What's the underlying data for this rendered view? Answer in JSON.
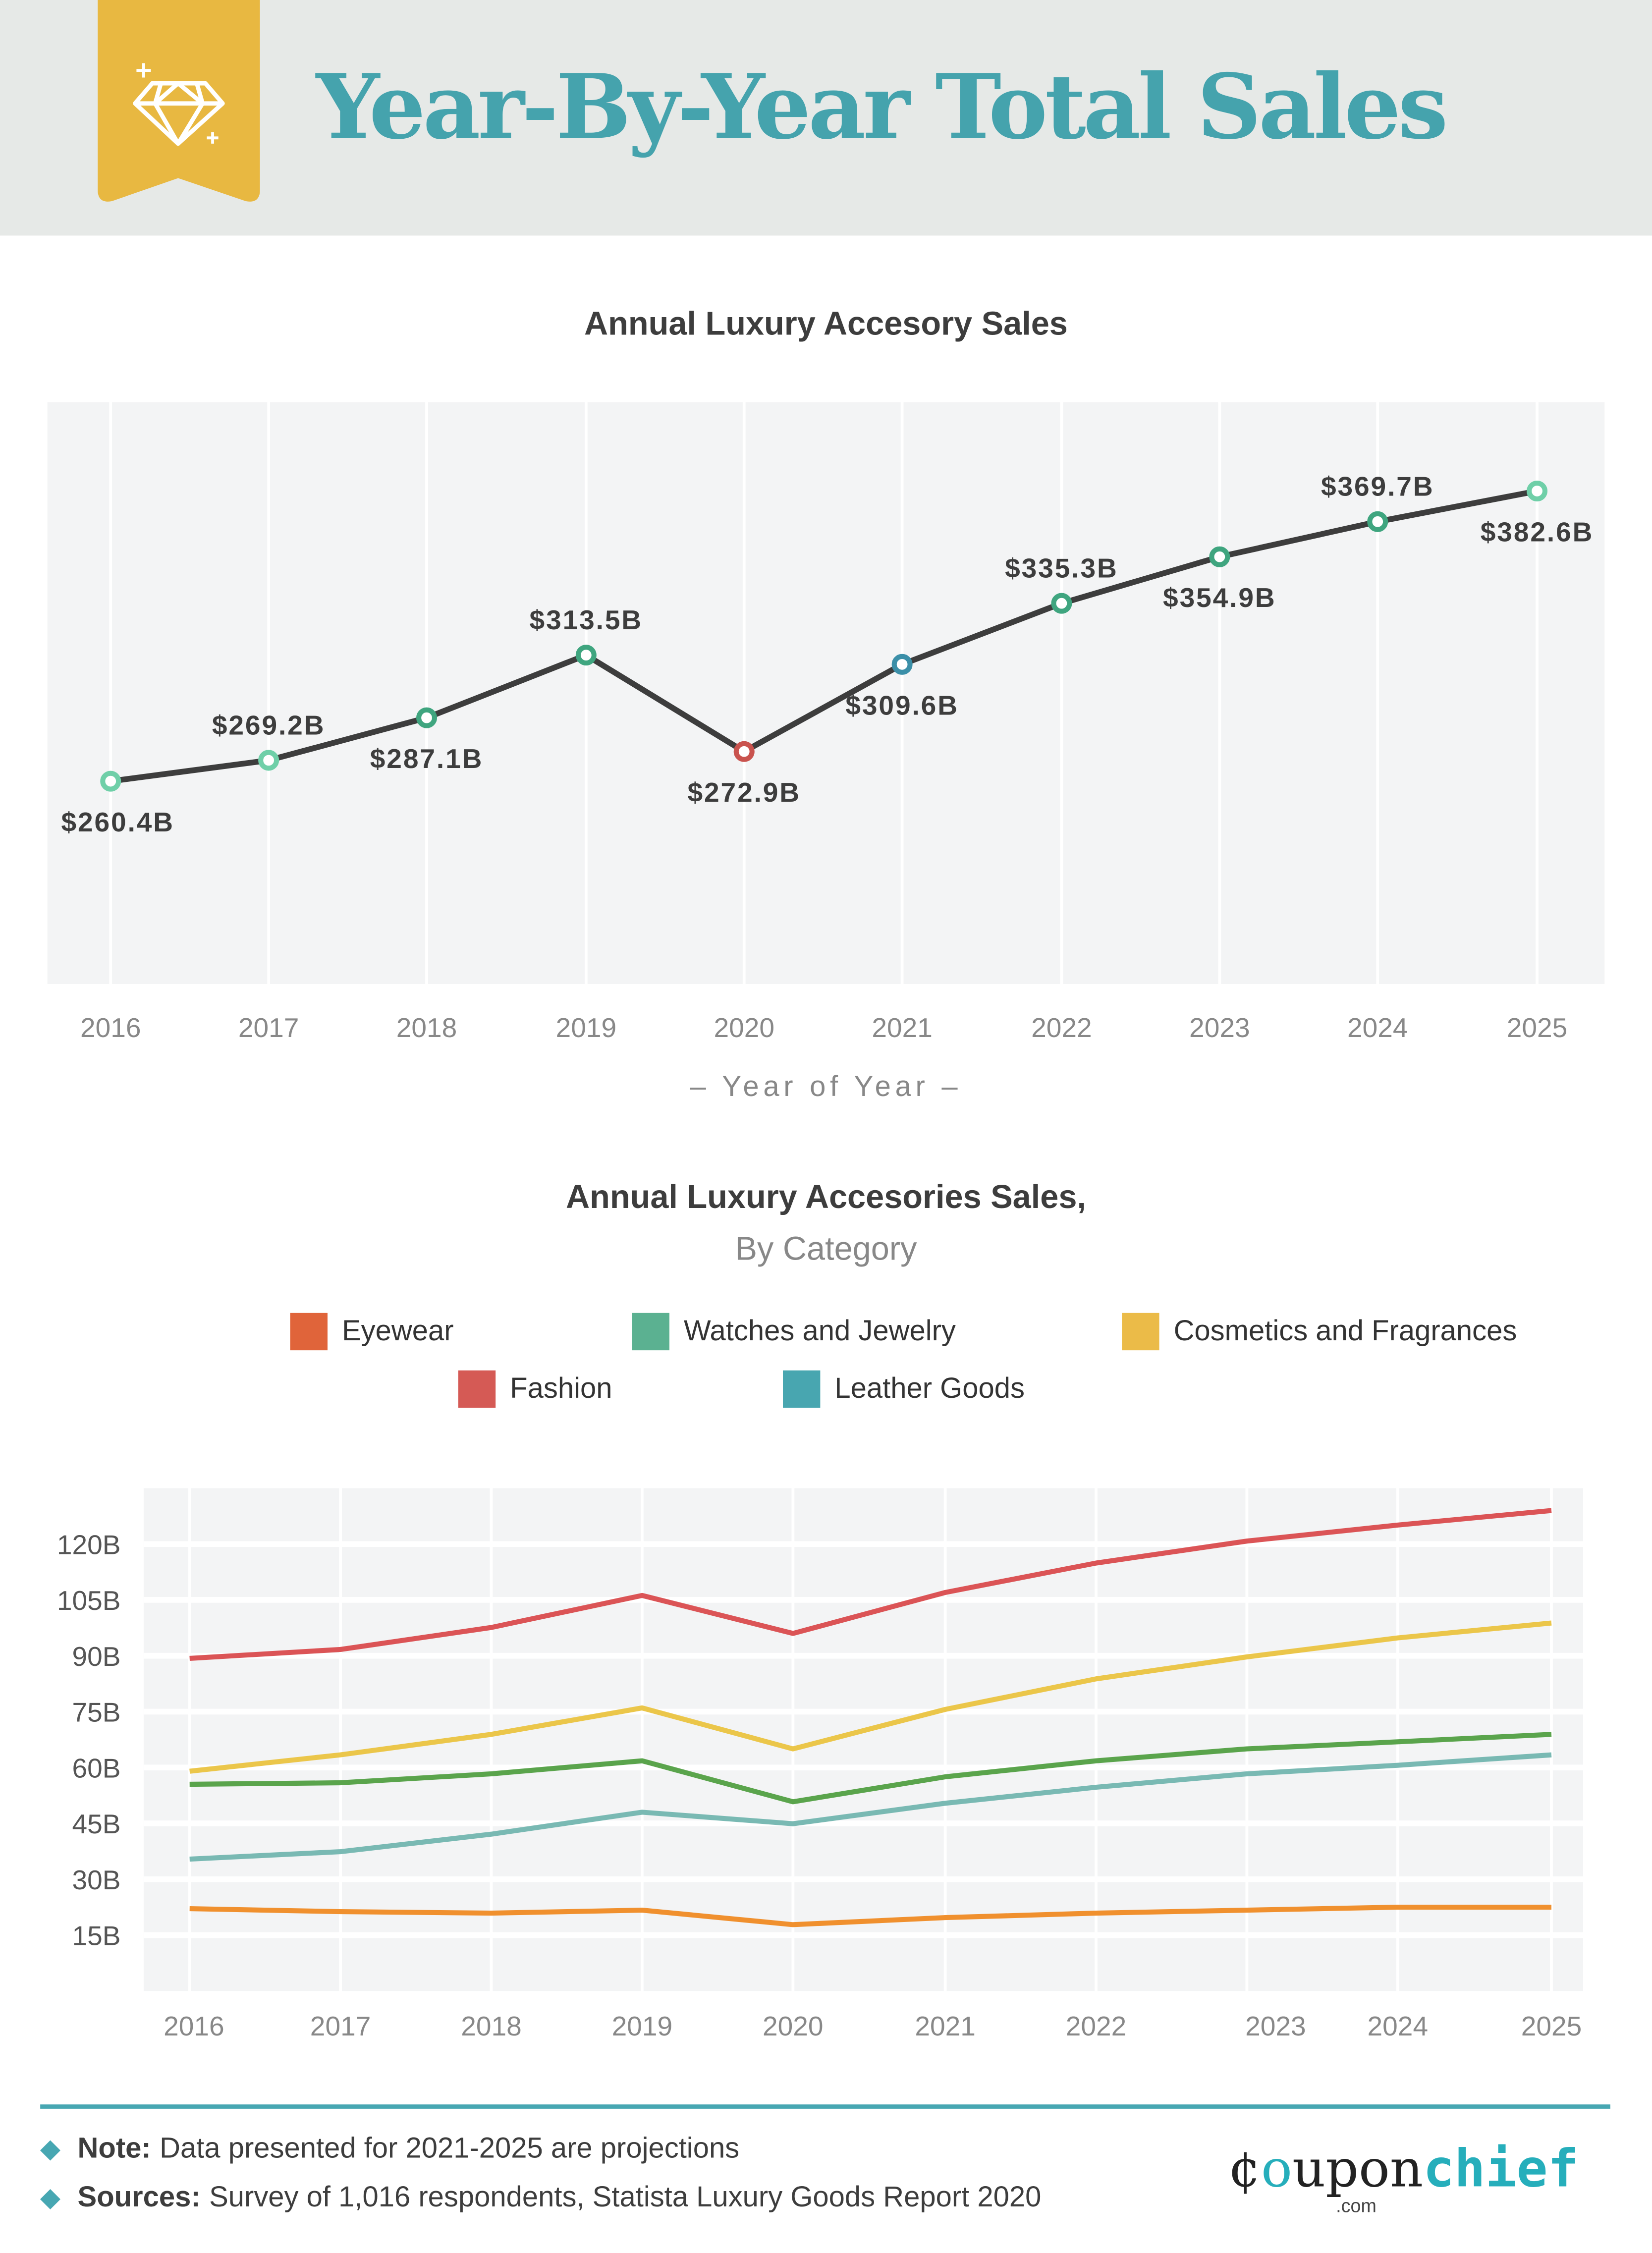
{
  "header": {
    "title": "Year-By-Year Total Sales",
    "badge_icon": "diamond-icon",
    "badge_color": "#e8b841",
    "title_color": "#45a3ad"
  },
  "chart_data": [
    {
      "type": "line",
      "title": "Annual Luxury Accesory Sales",
      "xlabel": "– Year of Year –",
      "ylabel": "",
      "categories": [
        "2016",
        "2017",
        "2018",
        "2019",
        "2020",
        "2021",
        "2022",
        "2023",
        "2024",
        "2025"
      ],
      "values": [
        260.4,
        269.2,
        287.1,
        313.5,
        272.9,
        309.6,
        335.3,
        354.9,
        369.7,
        382.6
      ],
      "data_labels": [
        "$260.4B",
        "$269.2B",
        "$287.1B",
        "$313.5B",
        "$272.9B",
        "$309.6B",
        "$335.3B",
        "$354.9B",
        "$369.7B",
        "$382.6B"
      ],
      "label_position": [
        "below",
        "above",
        "below",
        "above",
        "below",
        "below",
        "above",
        "below",
        "above",
        "below"
      ],
      "marker_colors": [
        "#6fcfa8",
        "#6fcfa8",
        "#3fa57f",
        "#3fa57f",
        "#c9534e",
        "#3b8fa8",
        "#3fa57f",
        "#3fa57f",
        "#3fa57f",
        "#6fcfa8"
      ],
      "line_color": "#3d3d3d",
      "ylim": [
        175,
        420
      ],
      "grid": true
    },
    {
      "type": "line",
      "title": "Annual Luxury Accesories Sales,",
      "subtitle": "By Category",
      "categories": [
        "2016",
        "2017",
        "2018",
        "2019",
        "2020",
        "2021",
        "2022",
        "2023",
        "2024",
        "2025"
      ],
      "y_ticks": [
        "15B",
        "30B",
        "45B",
        "60B",
        "75B",
        "90B",
        "105B",
        "120B"
      ],
      "y_tick_values": [
        15,
        30,
        45,
        60,
        75,
        90,
        105,
        120
      ],
      "ylim": [
        0,
        135
      ],
      "grid": true,
      "legend_position": "top",
      "series": [
        {
          "name": "Eyewear",
          "legend_color": "#e0643a",
          "color": "#f0902e",
          "values": [
            22.1,
            21.3,
            20.9,
            21.7,
            17.8,
            19.7,
            20.9,
            21.7,
            22.5,
            22.5
          ]
        },
        {
          "name": "Watches and Jewelry",
          "legend_color": "#5bb191",
          "color": "#5aa44c",
          "values": [
            55.5,
            55.9,
            58.3,
            61.8,
            50.8,
            57.5,
            61.8,
            65.0,
            66.9,
            68.9
          ]
        },
        {
          "name": "Cosmetics and Fragrances",
          "legend_color": "#ebbb48",
          "color": "#ebc64a",
          "values": [
            59.0,
            63.4,
            68.9,
            76.0,
            65.0,
            75.6,
            83.8,
            89.7,
            94.8,
            98.8
          ]
        },
        {
          "name": "Fashion",
          "legend_color": "#d55a55",
          "color": "#db5456",
          "values": [
            89.3,
            91.7,
            97.6,
            106.2,
            96.0,
            107.0,
            114.9,
            120.8,
            125.1,
            129.0
          ]
        },
        {
          "name": "Leather Goods",
          "legend_color": "#48a6b0",
          "color": "#79b9b3",
          "values": [
            35.4,
            37.4,
            42.1,
            48.0,
            44.9,
            50.4,
            54.7,
            58.3,
            60.6,
            63.4
          ]
        }
      ]
    }
  ],
  "footer": {
    "note_label": "Note:",
    "note_text": "Data presented for 2021-2025 are projections",
    "sources_label": "Sources:",
    "sources_text": "Survey of 1,016 respondents, Statista Luxury Goods Report 2020",
    "logo_text": "couponchief.com"
  }
}
